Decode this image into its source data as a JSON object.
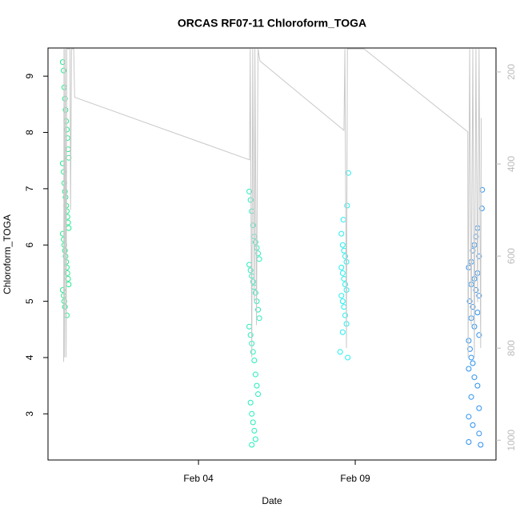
{
  "chart_data": {
    "type": "scatter",
    "title": "ORCAS RF07-11 Chloroform_TOGA",
    "x_label": "Date",
    "y_label": "Chloroform_TOGA",
    "xlim": [
      -0.8,
      13.49
    ],
    "xticks": [
      {
        "value": 4,
        "label": "Feb 04"
      },
      {
        "value": 9,
        "label": "Feb 09"
      }
    ],
    "ylim": [
      2.18,
      9.5
    ],
    "yticks": [
      3,
      4,
      5,
      6,
      7,
      8,
      9
    ],
    "y2lim": [
      1043,
      148
    ],
    "y2ticks": [
      200,
      400,
      600,
      800,
      1000
    ],
    "series": [
      {
        "color": "#1eee8a",
        "x": [
          -0.33,
          -0.3,
          -0.28,
          -0.26,
          -0.24,
          -0.22,
          -0.2,
          -0.18,
          -0.16,
          -0.14,
          -0.33,
          -0.3,
          -0.28,
          -0.26,
          -0.24,
          -0.22,
          -0.2,
          -0.18,
          -0.16,
          -0.14,
          -0.33,
          -0.3,
          -0.28,
          -0.26,
          -0.24,
          -0.22,
          -0.2,
          -0.18,
          -0.16,
          -0.14,
          -0.33,
          -0.3,
          -0.28,
          -0.26,
          -0.2
        ],
        "values": [
          9.25,
          9.1,
          8.8,
          8.6,
          8.4,
          8.2,
          8.05,
          7.9,
          7.7,
          7.55,
          7.45,
          7.3,
          7.1,
          6.95,
          6.85,
          6.7,
          6.6,
          6.5,
          6.4,
          6.3,
          6.2,
          6.1,
          6.0,
          5.9,
          5.8,
          5.7,
          5.6,
          5.5,
          5.4,
          5.3,
          5.2,
          5.1,
          5.0,
          4.9,
          4.75
        ]
      },
      {
        "color": "#22eebb",
        "x": [
          5.62,
          5.66,
          5.7,
          5.74,
          5.78,
          5.82,
          5.86,
          5.9,
          5.94,
          5.62,
          5.66,
          5.7,
          5.74,
          5.78,
          5.82,
          5.86,
          5.9,
          5.94,
          5.62,
          5.66,
          5.7,
          5.74,
          5.78,
          5.82,
          5.86,
          5.9,
          5.66,
          5.7,
          5.74,
          5.78,
          5.82,
          5.7
        ],
        "values": [
          6.95,
          6.8,
          6.6,
          6.35,
          6.15,
          6.05,
          5.95,
          5.85,
          5.75,
          5.65,
          5.55,
          5.45,
          5.35,
          5.25,
          5.15,
          5.0,
          4.85,
          4.7,
          4.55,
          4.4,
          4.25,
          4.1,
          3.95,
          3.7,
          3.5,
          3.35,
          3.2,
          3.0,
          2.85,
          2.7,
          2.55,
          2.45
        ]
      },
      {
        "color": "#22eeee",
        "x": [
          8.78,
          8.74,
          8.62,
          8.56,
          8.6,
          8.64,
          8.68,
          8.72,
          8.56,
          8.6,
          8.64,
          8.68,
          8.72,
          8.56,
          8.6,
          8.64,
          8.68,
          8.72,
          8.6,
          8.52,
          8.76
        ],
        "values": [
          7.28,
          6.7,
          6.45,
          6.2,
          6.0,
          5.9,
          5.8,
          5.7,
          5.6,
          5.5,
          5.4,
          5.3,
          5.2,
          5.1,
          5.0,
          4.9,
          4.75,
          4.6,
          4.45,
          4.1,
          4.0
        ]
      },
      {
        "color": "#2a90ee",
        "x": [
          13.05,
          13.04,
          12.9,
          12.85,
          12.8,
          12.75,
          12.95,
          12.7,
          12.62,
          12.9,
          12.8,
          12.7,
          12.85,
          12.95,
          12.65,
          12.75,
          12.9,
          12.7,
          12.8,
          12.95,
          12.62,
          12.66,
          12.7,
          12.75,
          12.62,
          12.8,
          12.9,
          12.7,
          12.95,
          12.62,
          12.75,
          12.95,
          12.62,
          13.0
        ],
        "values": [
          6.98,
          6.65,
          6.3,
          6.15,
          6.0,
          5.9,
          5.8,
          5.7,
          5.6,
          5.5,
          5.4,
          5.3,
          5.2,
          5.1,
          5.0,
          4.9,
          4.8,
          4.7,
          4.55,
          4.4,
          4.3,
          4.15,
          4.0,
          3.9,
          3.8,
          3.65,
          3.5,
          3.3,
          3.1,
          2.95,
          2.8,
          2.65,
          2.5,
          2.45
        ]
      },
      {
        "color": "#c8c8c8",
        "axis": "y2",
        "line": true,
        "x": [
          -0.3,
          -0.29,
          -0.27,
          -0.25,
          -0.22,
          -0.2,
          -0.1,
          -0.08,
          -0.05,
          0.02,
          0.05,
          5.63,
          5.65,
          5.7,
          5.73,
          5.78,
          5.8,
          5.85,
          5.9,
          5.96,
          8.64,
          8.67,
          8.72,
          8.75,
          8.8,
          9.28,
          12.59,
          12.6,
          12.65,
          12.7,
          12.75,
          12.8,
          12.85,
          12.9,
          12.95,
          13.0,
          13.02
        ],
        "values": [
          830,
          150,
          820,
          150,
          820,
          150,
          150,
          500,
          150,
          150,
          255,
          391,
          150,
          820,
          150,
          700,
          150,
          750,
          150,
          176,
          327,
          150,
          800,
          150,
          150,
          150,
          330,
          820,
          150,
          750,
          150,
          820,
          150,
          700,
          150,
          800,
          300
        ]
      }
    ]
  }
}
